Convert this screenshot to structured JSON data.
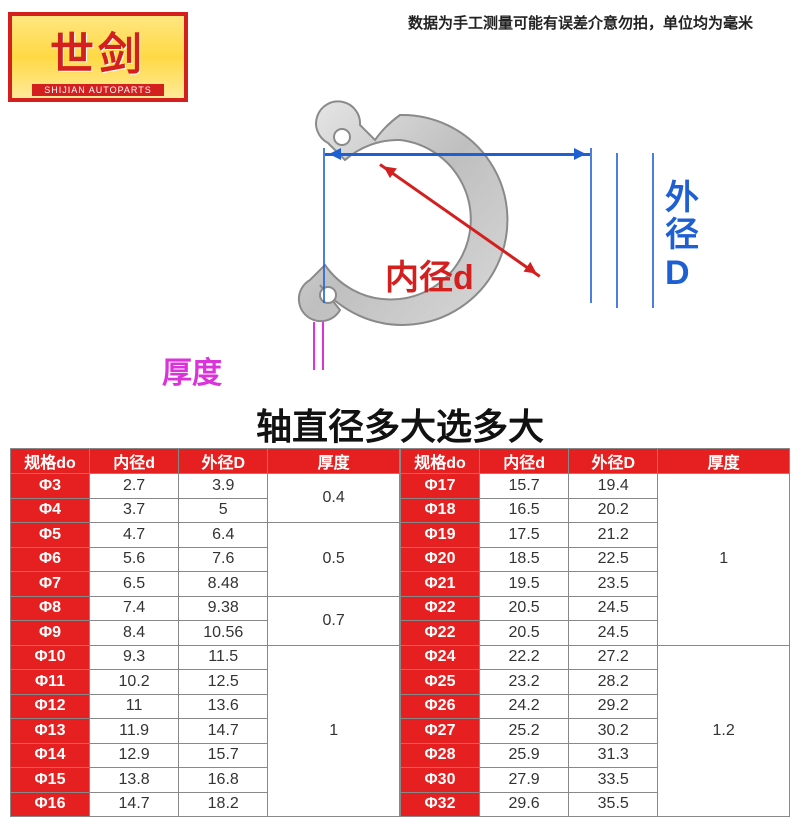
{
  "logo": {
    "main": "世剑",
    "sub": "SHIJIAN AUTOPARTS"
  },
  "note": "数据为手工测量可能有误差介意勿拍，单位均为毫米",
  "labels": {
    "inner_d": "内径d",
    "outer_D": "外径D",
    "thickness": "厚度"
  },
  "title": "轴直径多大选多大",
  "columns": {
    "spec": "规格do",
    "inner": "内径d",
    "outer": "外径D",
    "thick": "厚度"
  },
  "colors": {
    "brand_red": "#e62020",
    "label_red": "#d41f1f",
    "label_blue": "#1f5fd4",
    "label_magenta": "#d933d9",
    "ring_fill": "#c8c8c8",
    "ring_edge": "#9a9a9a"
  },
  "left_rows": [
    {
      "spec": "Φ3",
      "d": "2.7",
      "D": "3.9"
    },
    {
      "spec": "Φ4",
      "d": "3.7",
      "D": "5"
    },
    {
      "spec": "Φ5",
      "d": "4.7",
      "D": "6.4"
    },
    {
      "spec": "Φ6",
      "d": "5.6",
      "D": "7.6"
    },
    {
      "spec": "Φ7",
      "d": "6.5",
      "D": "8.48"
    },
    {
      "spec": "Φ8",
      "d": "7.4",
      "D": "9.38"
    },
    {
      "spec": "Φ9",
      "d": "8.4",
      "D": "10.56"
    },
    {
      "spec": "Φ10",
      "d": "9.3",
      "D": "11.5"
    },
    {
      "spec": "Φ11",
      "d": "10.2",
      "D": "12.5"
    },
    {
      "spec": "Φ12",
      "d": "11",
      "D": "13.6"
    },
    {
      "spec": "Φ13",
      "d": "11.9",
      "D": "14.7"
    },
    {
      "spec": "Φ14",
      "d": "12.9",
      "D": "15.7"
    },
    {
      "spec": "Φ15",
      "d": "13.8",
      "D": "16.8"
    },
    {
      "spec": "Φ16",
      "d": "14.7",
      "D": "18.2"
    }
  ],
  "left_thick_groups": [
    {
      "val": "0.4",
      "span": 2
    },
    {
      "val": "0.5",
      "span": 3
    },
    {
      "val": "0.7",
      "span": 2
    },
    {
      "val": "1",
      "span": 7
    }
  ],
  "right_rows": [
    {
      "spec": "Φ17",
      "d": "15.7",
      "D": "19.4"
    },
    {
      "spec": "Φ18",
      "d": "16.5",
      "D": "20.2"
    },
    {
      "spec": "Φ19",
      "d": "17.5",
      "D": "21.2"
    },
    {
      "spec": "Φ20",
      "d": "18.5",
      "D": "22.5"
    },
    {
      "spec": "Φ21",
      "d": "19.5",
      "D": "23.5"
    },
    {
      "spec": "Φ22",
      "d": "20.5",
      "D": "24.5"
    },
    {
      "spec": "Φ22",
      "d": "20.5",
      "D": "24.5"
    },
    {
      "spec": "Φ24",
      "d": "22.2",
      "D": "27.2"
    },
    {
      "spec": "Φ25",
      "d": "23.2",
      "D": "28.2"
    },
    {
      "spec": "Φ26",
      "d": "24.2",
      "D": "29.2"
    },
    {
      "spec": "Φ27",
      "d": "25.2",
      "D": "30.2"
    },
    {
      "spec": "Φ28",
      "d": "25.9",
      "D": "31.3"
    },
    {
      "spec": "Φ30",
      "d": "27.9",
      "D": "33.5"
    },
    {
      "spec": "Φ32",
      "d": "29.6",
      "D": "35.5"
    }
  ],
  "right_thick_groups": [
    {
      "val": "1",
      "span": 7
    },
    {
      "val": "1.2",
      "span": 7
    }
  ]
}
